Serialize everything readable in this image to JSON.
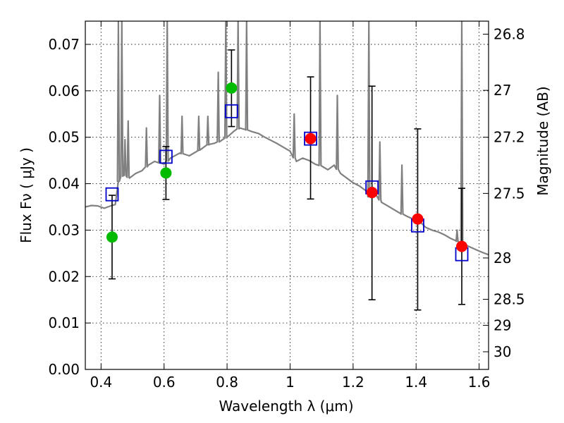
{
  "chart_data": {
    "type": "scatter",
    "title": "",
    "xlabel": "Wavelength  λ (μm)",
    "ylabel": "Flux  Fν  ( μJy )",
    "y2label": "Magnitude (AB)",
    "xlim": [
      0.35,
      1.63
    ],
    "ylim": [
      0.0,
      0.075
    ],
    "grid": true,
    "x_ticks": [
      0.4,
      0.6,
      0.8,
      1.0,
      1.2,
      1.4,
      1.6
    ],
    "x_tick_labels": [
      "0.4",
      "0.6",
      "0.8",
      "1",
      "1.2",
      "1.4",
      "1.6"
    ],
    "y_ticks": [
      0.0,
      0.01,
      0.02,
      0.03,
      0.04,
      0.05,
      0.06,
      0.07
    ],
    "y_tick_labels": [
      "0.00",
      "0.01",
      "0.02",
      "0.03",
      "0.04",
      "0.05",
      "0.06",
      "0.07"
    ],
    "y2_ticks": [
      {
        "label": "26.8",
        "flux": 0.0722
      },
      {
        "label": "27",
        "flux": 0.0601
      },
      {
        "label": "27.2",
        "flux": 0.05
      },
      {
        "label": "27.5",
        "flux": 0.0379
      },
      {
        "label": "28",
        "flux": 0.024
      },
      {
        "label": "28.5",
        "flux": 0.0151
      },
      {
        "label": "29",
        "flux": 0.0095
      },
      {
        "label": "30",
        "flux": 0.0038
      }
    ],
    "colors": {
      "green": "#00bb00",
      "red": "#ff0000",
      "model_box": "#0000cc",
      "sed": "#808080",
      "errorbar": "#000000"
    },
    "series": [
      {
        "kind": "green_points",
        "points": [
          {
            "x": 0.435,
            "y": 0.0285,
            "ylo": 0.0195,
            "yhi": 0.0375
          },
          {
            "x": 0.606,
            "y": 0.0423,
            "ylo": 0.0366,
            "yhi": 0.048
          },
          {
            "x": 0.814,
            "y": 0.0606,
            "ylo": 0.0523,
            "yhi": 0.0688
          }
        ]
      },
      {
        "kind": "red_points",
        "points": [
          {
            "x": 1.065,
            "y": 0.0497,
            "ylo": 0.0367,
            "yhi": 0.063
          },
          {
            "x": 1.26,
            "y": 0.0381,
            "ylo": 0.015,
            "yhi": 0.061
          },
          {
            "x": 1.405,
            "y": 0.0324,
            "ylo": 0.0128,
            "yhi": 0.0518
          },
          {
            "x": 1.545,
            "y": 0.0265,
            "ylo": 0.014,
            "yhi": 0.039
          }
        ]
      },
      {
        "kind": "model_boxes",
        "points": [
          {
            "x": 0.435,
            "y": 0.0377
          },
          {
            "x": 0.606,
            "y": 0.0458
          },
          {
            "x": 0.814,
            "y": 0.0556
          },
          {
            "x": 1.065,
            "y": 0.0497
          },
          {
            "x": 1.26,
            "y": 0.0392
          },
          {
            "x": 1.405,
            "y": 0.031
          },
          {
            "x": 1.545,
            "y": 0.0248
          }
        ]
      }
    ],
    "sed_continuum": [
      [
        0.35,
        0.035
      ],
      [
        0.37,
        0.0353
      ],
      [
        0.39,
        0.0352
      ],
      [
        0.41,
        0.0347
      ],
      [
        0.43,
        0.0352
      ],
      [
        0.445,
        0.0355
      ],
      [
        0.455,
        0.0405
      ],
      [
        0.47,
        0.042
      ],
      [
        0.49,
        0.0412
      ],
      [
        0.51,
        0.0422
      ],
      [
        0.53,
        0.0428
      ],
      [
        0.55,
        0.044
      ],
      [
        0.57,
        0.0448
      ],
      [
        0.6,
        0.0442
      ],
      [
        0.62,
        0.0455
      ],
      [
        0.65,
        0.0466
      ],
      [
        0.68,
        0.046
      ],
      [
        0.71,
        0.0472
      ],
      [
        0.74,
        0.0484
      ],
      [
        0.76,
        0.0487
      ],
      [
        0.78,
        0.0492
      ],
      [
        0.8,
        0.05
      ],
      [
        0.82,
        0.0512
      ],
      [
        0.84,
        0.052
      ],
      [
        0.86,
        0.0516
      ],
      [
        0.88,
        0.0512
      ],
      [
        0.9,
        0.0508
      ],
      [
        0.92,
        0.05
      ],
      [
        0.94,
        0.0493
      ],
      [
        0.96,
        0.0486
      ],
      [
        0.98,
        0.0478
      ],
      [
        1.0,
        0.047
      ],
      [
        1.02,
        0.0448
      ],
      [
        1.04,
        0.0455
      ],
      [
        1.06,
        0.045
      ],
      [
        1.08,
        0.0442
      ],
      [
        1.1,
        0.0438
      ],
      [
        1.12,
        0.043
      ],
      [
        1.14,
        0.044
      ],
      [
        1.16,
        0.0422
      ],
      [
        1.18,
        0.0412
      ],
      [
        1.2,
        0.0402
      ],
      [
        1.22,
        0.0395
      ],
      [
        1.24,
        0.0385
      ],
      [
        1.25,
        0.0372
      ],
      [
        1.27,
        0.038
      ],
      [
        1.29,
        0.036
      ],
      [
        1.31,
        0.0352
      ],
      [
        1.33,
        0.0344
      ],
      [
        1.35,
        0.0336
      ],
      [
        1.37,
        0.033
      ],
      [
        1.39,
        0.0324
      ],
      [
        1.41,
        0.032
      ],
      [
        1.43,
        0.0306
      ],
      [
        1.45,
        0.03
      ],
      [
        1.47,
        0.0296
      ],
      [
        1.49,
        0.029
      ],
      [
        1.51,
        0.0282
      ],
      [
        1.53,
        0.0276
      ],
      [
        1.55,
        0.027
      ],
      [
        1.57,
        0.0264
      ],
      [
        1.59,
        0.0258
      ],
      [
        1.61,
        0.0252
      ],
      [
        1.63,
        0.0247
      ]
    ],
    "sed_emission_lines": [
      {
        "x": 0.455,
        "peak": 0.075
      },
      {
        "x": 0.466,
        "peak": 0.075
      },
      {
        "x": 0.476,
        "peak": 0.0495
      },
      {
        "x": 0.486,
        "peak": 0.0535
      },
      {
        "x": 0.544,
        "peak": 0.052
      },
      {
        "x": 0.586,
        "peak": 0.059
      },
      {
        "x": 0.61,
        "peak": 0.075
      },
      {
        "x": 0.657,
        "peak": 0.0545
      },
      {
        "x": 0.71,
        "peak": 0.0545
      },
      {
        "x": 0.739,
        "peak": 0.0545
      },
      {
        "x": 0.772,
        "peak": 0.064
      },
      {
        "x": 0.796,
        "peak": 0.075
      },
      {
        "x": 0.835,
        "peak": 0.075
      },
      {
        "x": 0.862,
        "peak": 0.075
      },
      {
        "x": 1.013,
        "peak": 0.055
      },
      {
        "x": 1.095,
        "peak": 0.075
      },
      {
        "x": 1.15,
        "peak": 0.059
      },
      {
        "x": 1.25,
        "peak": 0.075
      },
      {
        "x": 1.285,
        "peak": 0.049
      },
      {
        "x": 1.355,
        "peak": 0.044
      },
      {
        "x": 1.53,
        "peak": 0.03
      },
      {
        "x": 1.545,
        "peak": 0.075
      }
    ]
  }
}
